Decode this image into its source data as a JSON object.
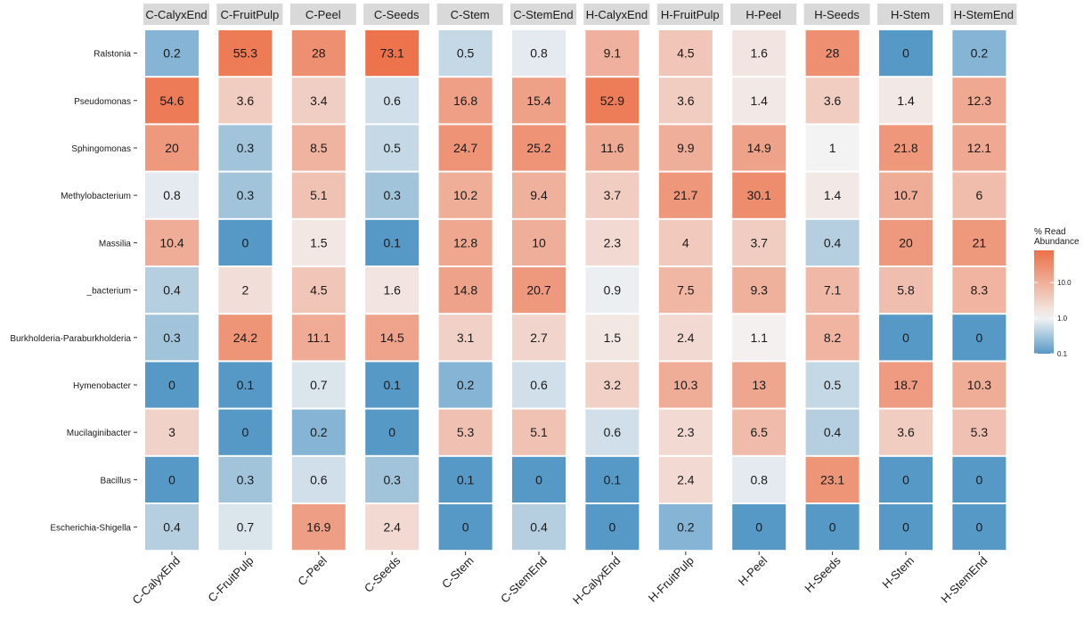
{
  "chart_data": {
    "type": "heatmap",
    "facets": [
      "C-CalyxEnd",
      "C-FruitPulp",
      "C-Peel",
      "C-Seeds",
      "C-Stem",
      "C-StemEnd",
      "H-CalyxEnd",
      "H-FruitPulp",
      "H-Peel",
      "H-Seeds",
      "H-Stem",
      "H-StemEnd"
    ],
    "x": [
      "C-CalyxEnd",
      "C-FruitPulp",
      "C-Peel",
      "C-Seeds",
      "C-Stem",
      "C-StemEnd",
      "H-CalyxEnd",
      "H-FruitPulp",
      "H-Peel",
      "H-Seeds",
      "H-Stem",
      "H-StemEnd"
    ],
    "y": [
      "Ralstonia",
      "Pseudomonas",
      "Sphingomonas",
      "Methylobacterium",
      "Massilia",
      "_bacterium",
      "Burkholderia-Paraburkholderia",
      "Hymenobacter",
      "Mucilaginibacter",
      "Bacillus",
      "Escherichia-Shigella"
    ],
    "values": [
      [
        "0.2",
        "55.3",
        "28",
        "73.1",
        "0.5",
        "0.8",
        "9.1",
        "4.5",
        "1.6",
        "28",
        "0",
        "0.2"
      ],
      [
        "54.6",
        "3.6",
        "3.4",
        "0.6",
        "16.8",
        "15.4",
        "52.9",
        "3.6",
        "1.4",
        "3.6",
        "1.4",
        "12.3"
      ],
      [
        "20",
        "0.3",
        "8.5",
        "0.5",
        "24.7",
        "25.2",
        "11.6",
        "9.9",
        "14.9",
        "1",
        "21.8",
        "12.1"
      ],
      [
        "0.8",
        "0.3",
        "5.1",
        "0.3",
        "10.2",
        "9.4",
        "3.7",
        "21.7",
        "30.1",
        "1.4",
        "10.7",
        "6"
      ],
      [
        "10.4",
        "0",
        "1.5",
        "0.1",
        "12.8",
        "10",
        "2.3",
        "4",
        "3.7",
        "0.4",
        "20",
        "21"
      ],
      [
        "0.4",
        "2",
        "4.5",
        "1.6",
        "14.8",
        "20.7",
        "0.9",
        "7.5",
        "9.3",
        "7.1",
        "5.8",
        "8.3"
      ],
      [
        "0.3",
        "24.2",
        "11.1",
        "14.5",
        "3.1",
        "2.7",
        "1.5",
        "2.4",
        "1.1",
        "8.2",
        "0",
        "0"
      ],
      [
        "0",
        "0.1",
        "0.7",
        "0.1",
        "0.2",
        "0.6",
        "3.2",
        "10.3",
        "13",
        "0.5",
        "18.7",
        "10.3"
      ],
      [
        "3",
        "0",
        "0.2",
        "0",
        "5.3",
        "5.1",
        "0.6",
        "2.3",
        "6.5",
        "0.4",
        "3.6",
        "5.3"
      ],
      [
        "0",
        "0.3",
        "0.6",
        "0.3",
        "0.1",
        "0",
        "0.1",
        "2.4",
        "0.8",
        "23.1",
        "0",
        "0"
      ],
      [
        "0.4",
        "0.7",
        "16.9",
        "2.4",
        "0",
        "0.4",
        "0",
        "0.2",
        "0",
        "0",
        "0",
        "0"
      ]
    ],
    "color_scale": {
      "type": "log",
      "low_color": "#5699c6",
      "mid_color": "#f3f3f3",
      "high_color": "#ec7048",
      "domain": [
        0.1,
        80
      ]
    },
    "legend": {
      "title_lines": [
        "% Read",
        "Abundance"
      ],
      "ticks": [
        "10.0",
        "1.0",
        "0.1"
      ],
      "placement": "right"
    }
  }
}
